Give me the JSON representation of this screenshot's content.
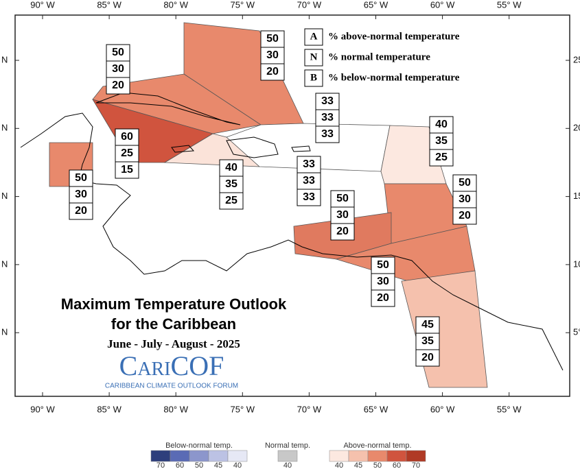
{
  "map": {
    "title": "Maximum Temperature Outlook",
    "subtitle": "for the Caribbean",
    "period": "June - July - August - 2025",
    "logo": "CariCOF",
    "logo_caption": "CARIBBEAN CLIMATE OUTLOOK FORUM",
    "longitude_labels": [
      "90° W",
      "85° W",
      "80° W",
      "75° W",
      "70° W",
      "65° W",
      "60° W",
      "55° W"
    ],
    "latitude_labels_left": [
      "N",
      "N",
      "N",
      "N",
      "N"
    ],
    "latitude_labels_right": [
      "25°",
      "20°",
      "15°",
      "10°",
      "5°"
    ],
    "key": [
      {
        "letter": "A",
        "text": "% above-normal temperature"
      },
      {
        "letter": "N",
        "text": "% normal temperature"
      },
      {
        "letter": "B",
        "text": "% below-normal temperature"
      }
    ],
    "regions": [
      {
        "values": [
          50,
          30,
          20
        ]
      },
      {
        "values": [
          50,
          30,
          20
        ]
      },
      {
        "values": [
          60,
          25,
          15
        ]
      },
      {
        "values": [
          40,
          35,
          25
        ]
      },
      {
        "values": [
          50,
          30,
          20
        ]
      },
      {
        "values": [
          33,
          33,
          33
        ]
      },
      {
        "values": [
          33,
          33,
          33
        ]
      },
      {
        "values": [
          40,
          35,
          25
        ]
      },
      {
        "values": [
          50,
          30,
          20
        ]
      },
      {
        "values": [
          50,
          30,
          20
        ]
      },
      {
        "values": [
          50,
          30,
          20
        ]
      },
      {
        "values": [
          45,
          35,
          20
        ]
      }
    ],
    "colorbar": {
      "below": {
        "label": "Below-normal temp.",
        "ticks": [
          70,
          60,
          50,
          45,
          40
        ]
      },
      "normal": {
        "label": "Normal temp.",
        "ticks": [
          40
        ]
      },
      "above": {
        "label": "Above-normal temp.",
        "ticks": [
          40,
          45,
          50,
          60,
          70
        ]
      }
    }
  }
}
